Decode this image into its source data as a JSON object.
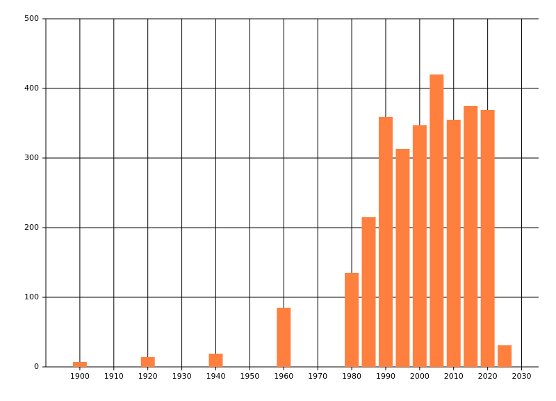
{
  "chart_data": {
    "type": "bar",
    "x": [
      1900,
      1920,
      1940,
      1960,
      1980,
      1985,
      1990,
      1995,
      2000,
      2005,
      2010,
      2015,
      2020,
      2025
    ],
    "values": [
      7,
      14,
      19,
      85,
      135,
      215,
      359,
      313,
      347,
      420,
      355,
      375,
      369,
      31
    ],
    "color": "#ff7f3f",
    "xlim": [
      1890,
      2035
    ],
    "xticks": [
      1900,
      1910,
      1920,
      1930,
      1940,
      1950,
      1960,
      1970,
      1980,
      1990,
      2000,
      2010,
      2020,
      2030
    ],
    "ylim": [
      0,
      500
    ],
    "yticks": [
      0,
      100,
      200,
      300,
      400,
      500
    ],
    "grid": true
  }
}
